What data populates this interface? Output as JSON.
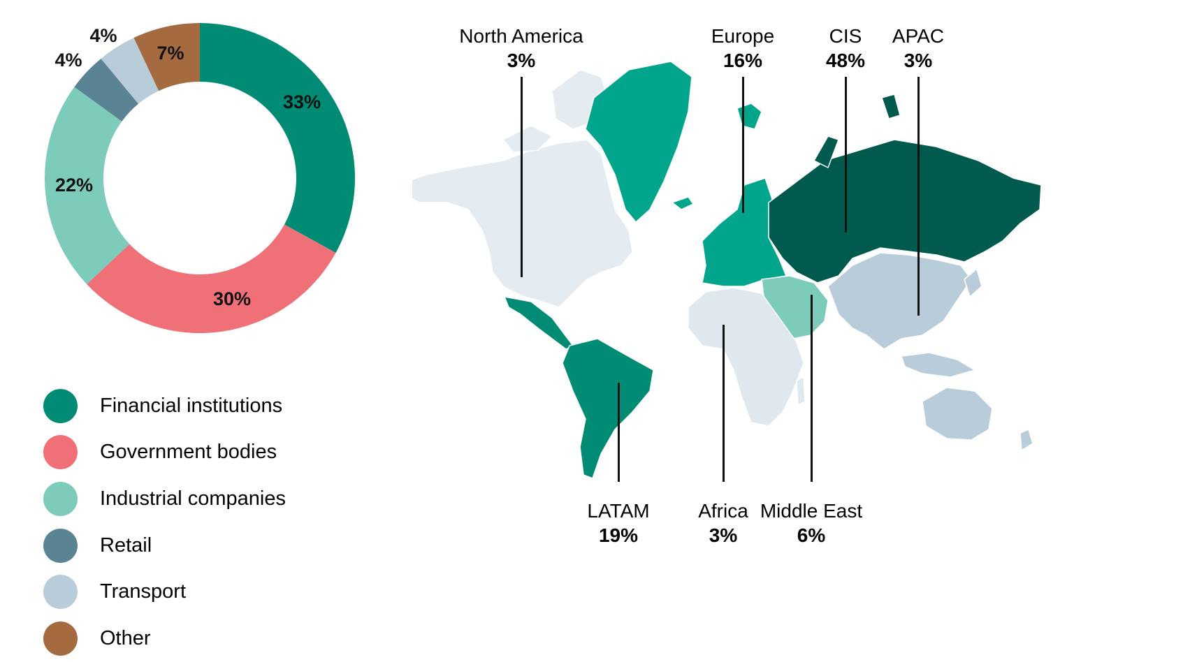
{
  "colors": {
    "financial": "#008b74",
    "government": "#f07078",
    "industrial": "#7dcbbb",
    "retail": "#5a8394",
    "transport": "#b8cdd9",
    "other": "#a66a40",
    "land_light": "#e4ecf1",
    "land_blue": "#b8cdd9",
    "region_teal": "#00a58c",
    "region_dark": "#005a4d",
    "region_latam": "#008b74",
    "region_me": "#7dcbbb"
  },
  "chart_data": [
    {
      "type": "pie",
      "subtype": "donut",
      "categories": [
        "Financial institutions",
        "Government bodies",
        "Industrial companies",
        "Retail",
        "Transport",
        "Other"
      ],
      "values": [
        33,
        30,
        22,
        4,
        4,
        7
      ],
      "value_labels": [
        "33%",
        "30%",
        "22%",
        "4%",
        "4%",
        "7%"
      ],
      "colors": [
        "#008b74",
        "#f07078",
        "#7dcbbb",
        "#5a8394",
        "#b8cdd9",
        "#a66a40"
      ],
      "legend_position": "bottom-left",
      "title": ""
    },
    {
      "type": "map",
      "regions": [
        {
          "name": "North America",
          "value": 3,
          "label": "3%",
          "color": "#e4ecf1"
        },
        {
          "name": "Europe",
          "value": 16,
          "label": "16%",
          "color": "#00a58c"
        },
        {
          "name": "CIS",
          "value": 48,
          "label": "48%",
          "color": "#005a4d"
        },
        {
          "name": "APAC",
          "value": 3,
          "label": "3%",
          "color": "#b8cdd9"
        },
        {
          "name": "LATAM",
          "value": 19,
          "label": "19%",
          "color": "#008b74"
        },
        {
          "name": "Africa",
          "value": 3,
          "label": "3%",
          "color": "#dfe8ee"
        },
        {
          "name": "Middle East",
          "value": 6,
          "label": "6%",
          "color": "#7dcbbb"
        }
      ]
    }
  ]
}
